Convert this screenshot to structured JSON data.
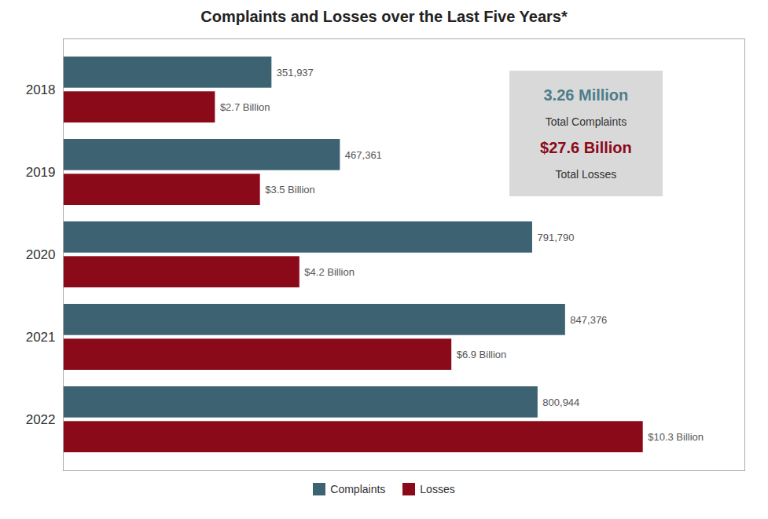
{
  "chart_data": {
    "type": "bar",
    "orientation": "horizontal",
    "title": "Complaints and Losses over the Last Five Years*",
    "categories": [
      "2018",
      "2019",
      "2020",
      "2021",
      "2022"
    ],
    "series": [
      {
        "name": "Complaints",
        "color": "#3d6272",
        "values": [
          351937,
          467361,
          791790,
          847376,
          800944
        ],
        "value_labels": [
          "351,937",
          "467,361",
          "791,790",
          "847,376",
          "800,944"
        ]
      },
      {
        "name": "Losses",
        "color": "#8b0a1a",
        "axis": "y2",
        "values": [
          2.7,
          3.5,
          4.2,
          6.9,
          10.3
        ],
        "value_labels": [
          "$2.7 Billion",
          "$3.5 Billion",
          "$4.2 Billion",
          "$6.9 Billion",
          "$10.3 Billion"
        ]
      }
    ],
    "ylim": [
      0,
      1150000
    ],
    "yticks": [],
    "y2lim": [
      0,
      12.105263157894736
    ],
    "y2ticks": [],
    "tick_labels": "x",
    "data_labels": true,
    "grid": false,
    "legend": "bottom",
    "annotations": [
      {
        "text": "3.26 Million",
        "color": "#4d7d8a"
      },
      {
        "text": "Total Complaints"
      },
      {
        "text": "$27.6 Billion",
        "color": "#8b0a1a"
      },
      {
        "text": "Total Losses"
      }
    ]
  }
}
